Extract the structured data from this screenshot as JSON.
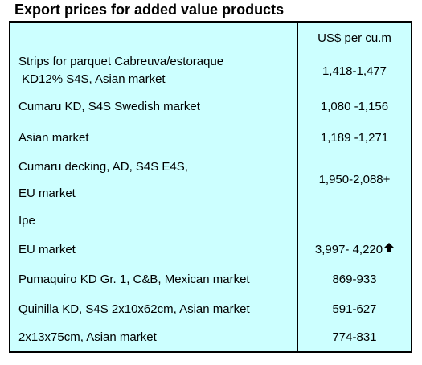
{
  "title": "Export prices for added value products",
  "header": {
    "unit": "US$ per cu.m"
  },
  "rows": [
    {
      "product_line1": "Strips for parquet Cabreuva/estoraque",
      "product_line2": " KD12% S4S, Asian market",
      "price": "1,418-1,477"
    },
    {
      "product": "Cumaru KD, S4S Swedish market",
      "price": "1,080 -1,156"
    },
    {
      "product": "Asian market",
      "price": "1,189 -1,271"
    },
    {
      "product": "Cumaru decking, AD, S4S E4S,",
      "price": "1,950-2,088+"
    },
    {
      "product": "EU market"
    },
    {
      "product": "Ipe"
    },
    {
      "product": "EU market",
      "price": "3,997- 4,220",
      "trend_icon": "up-arrow-icon"
    },
    {
      "product": "Pumaquiro KD Gr. 1, C&B,  Mexican market",
      "price": "869-933"
    },
    {
      "product": "Quinilla KD, S4S 2x10x62cm,  Asian market",
      "price": "591-627"
    },
    {
      "product": "2x13x75cm, Asian market",
      "price": "774-831"
    }
  ],
  "colors": {
    "table_background": "#ccffff",
    "border": "#000000",
    "text": "#000000"
  }
}
